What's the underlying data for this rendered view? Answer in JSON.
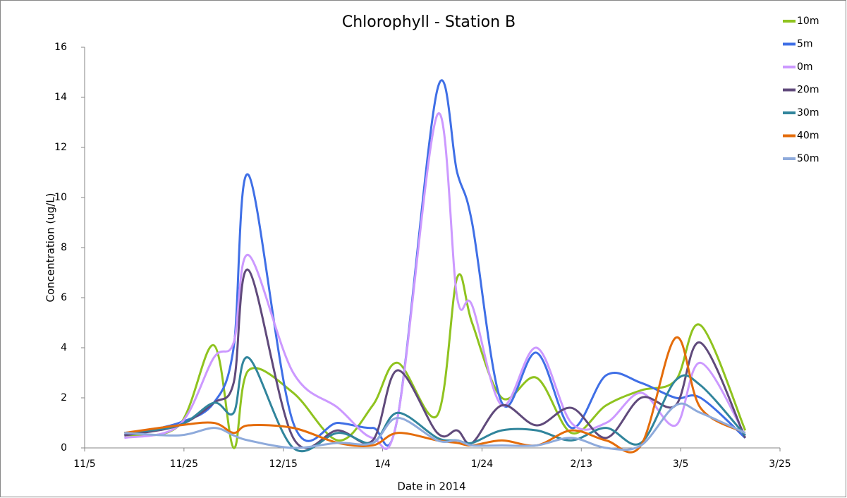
{
  "chart_data": {
    "type": "line",
    "title": "Chlorophyll - Station B",
    "x_label": "Date in 2014",
    "y_label": "Concentration (ug/L)",
    "x": [
      "11/13",
      "11/24",
      "12/1",
      "12/5",
      "12/8",
      "12/17",
      "12/26",
      "1/2",
      "1/7",
      "1/15",
      "1/19",
      "1/22",
      "1/28",
      "2/4",
      "2/11",
      "2/18",
      "2/25",
      "3/4",
      "3/9",
      "3/18"
    ],
    "xlim": [
      "11/5",
      "3/25"
    ],
    "xticks": [
      "11/5",
      "11/25",
      "12/15",
      "1/4",
      "1/24",
      "2/13",
      "3/5",
      "3/25"
    ],
    "ylim": [
      0,
      16
    ],
    "yticks": [
      0,
      2,
      4,
      6,
      8,
      10,
      12,
      14,
      16
    ],
    "grid": false,
    "legend": "right",
    "series": [
      {
        "name": "10m",
        "color": "#8fc31f",
        "values": [
          0.5,
          0.9,
          4.1,
          0.0,
          3.1,
          2.2,
          0.3,
          1.7,
          3.4,
          1.3,
          6.8,
          5.0,
          2.0,
          2.8,
          0.6,
          1.7,
          2.3,
          2.7,
          4.9,
          0.7
        ]
      },
      {
        "name": "5m",
        "color": "#3f6fe6",
        "values": [
          0.5,
          1.0,
          1.8,
          4.0,
          10.9,
          1.0,
          1.0,
          0.8,
          1.2,
          14.3,
          11.0,
          9.0,
          1.8,
          3.8,
          0.8,
          2.9,
          2.6,
          2.0,
          2.0,
          0.4
        ]
      },
      {
        "name": "0m",
        "color": "#cc99ff",
        "values": [
          0.4,
          0.9,
          3.6,
          4.2,
          7.7,
          3.0,
          1.6,
          0.4,
          1.2,
          13.3,
          6.0,
          5.7,
          1.7,
          4.0,
          1.0,
          1.0,
          2.2,
          0.9,
          3.4,
          0.5
        ]
      },
      {
        "name": "20m",
        "color": "#604a7b",
        "values": [
          0.5,
          0.9,
          1.8,
          2.6,
          7.1,
          0.4,
          0.7,
          0.3,
          3.1,
          0.6,
          0.7,
          0.2,
          1.7,
          0.9,
          1.6,
          0.4,
          2.0,
          1.7,
          4.2,
          0.4
        ]
      },
      {
        "name": "30m",
        "color": "#31859c",
        "values": [
          0.6,
          0.9,
          1.8,
          1.4,
          3.6,
          0.0,
          0.6,
          0.2,
          1.4,
          0.4,
          0.3,
          0.2,
          0.7,
          0.7,
          0.3,
          0.8,
          0.2,
          2.7,
          2.5,
          0.5
        ]
      },
      {
        "name": "40m",
        "color": "#e46c0a",
        "values": [
          0.6,
          0.9,
          1.0,
          0.6,
          0.9,
          0.8,
          0.2,
          0.1,
          0.6,
          0.3,
          0.2,
          0.1,
          0.3,
          0.1,
          0.7,
          0.3,
          0.1,
          4.4,
          1.6,
          0.6
        ]
      },
      {
        "name": "50m",
        "color": "#8eaadb",
        "values": [
          0.6,
          0.5,
          0.8,
          0.5,
          0.3,
          0.0,
          0.2,
          0.2,
          1.2,
          0.3,
          0.3,
          0.1,
          0.1,
          0.1,
          0.4,
          0.0,
          0.1,
          1.7,
          1.4,
          0.6
        ]
      }
    ]
  }
}
